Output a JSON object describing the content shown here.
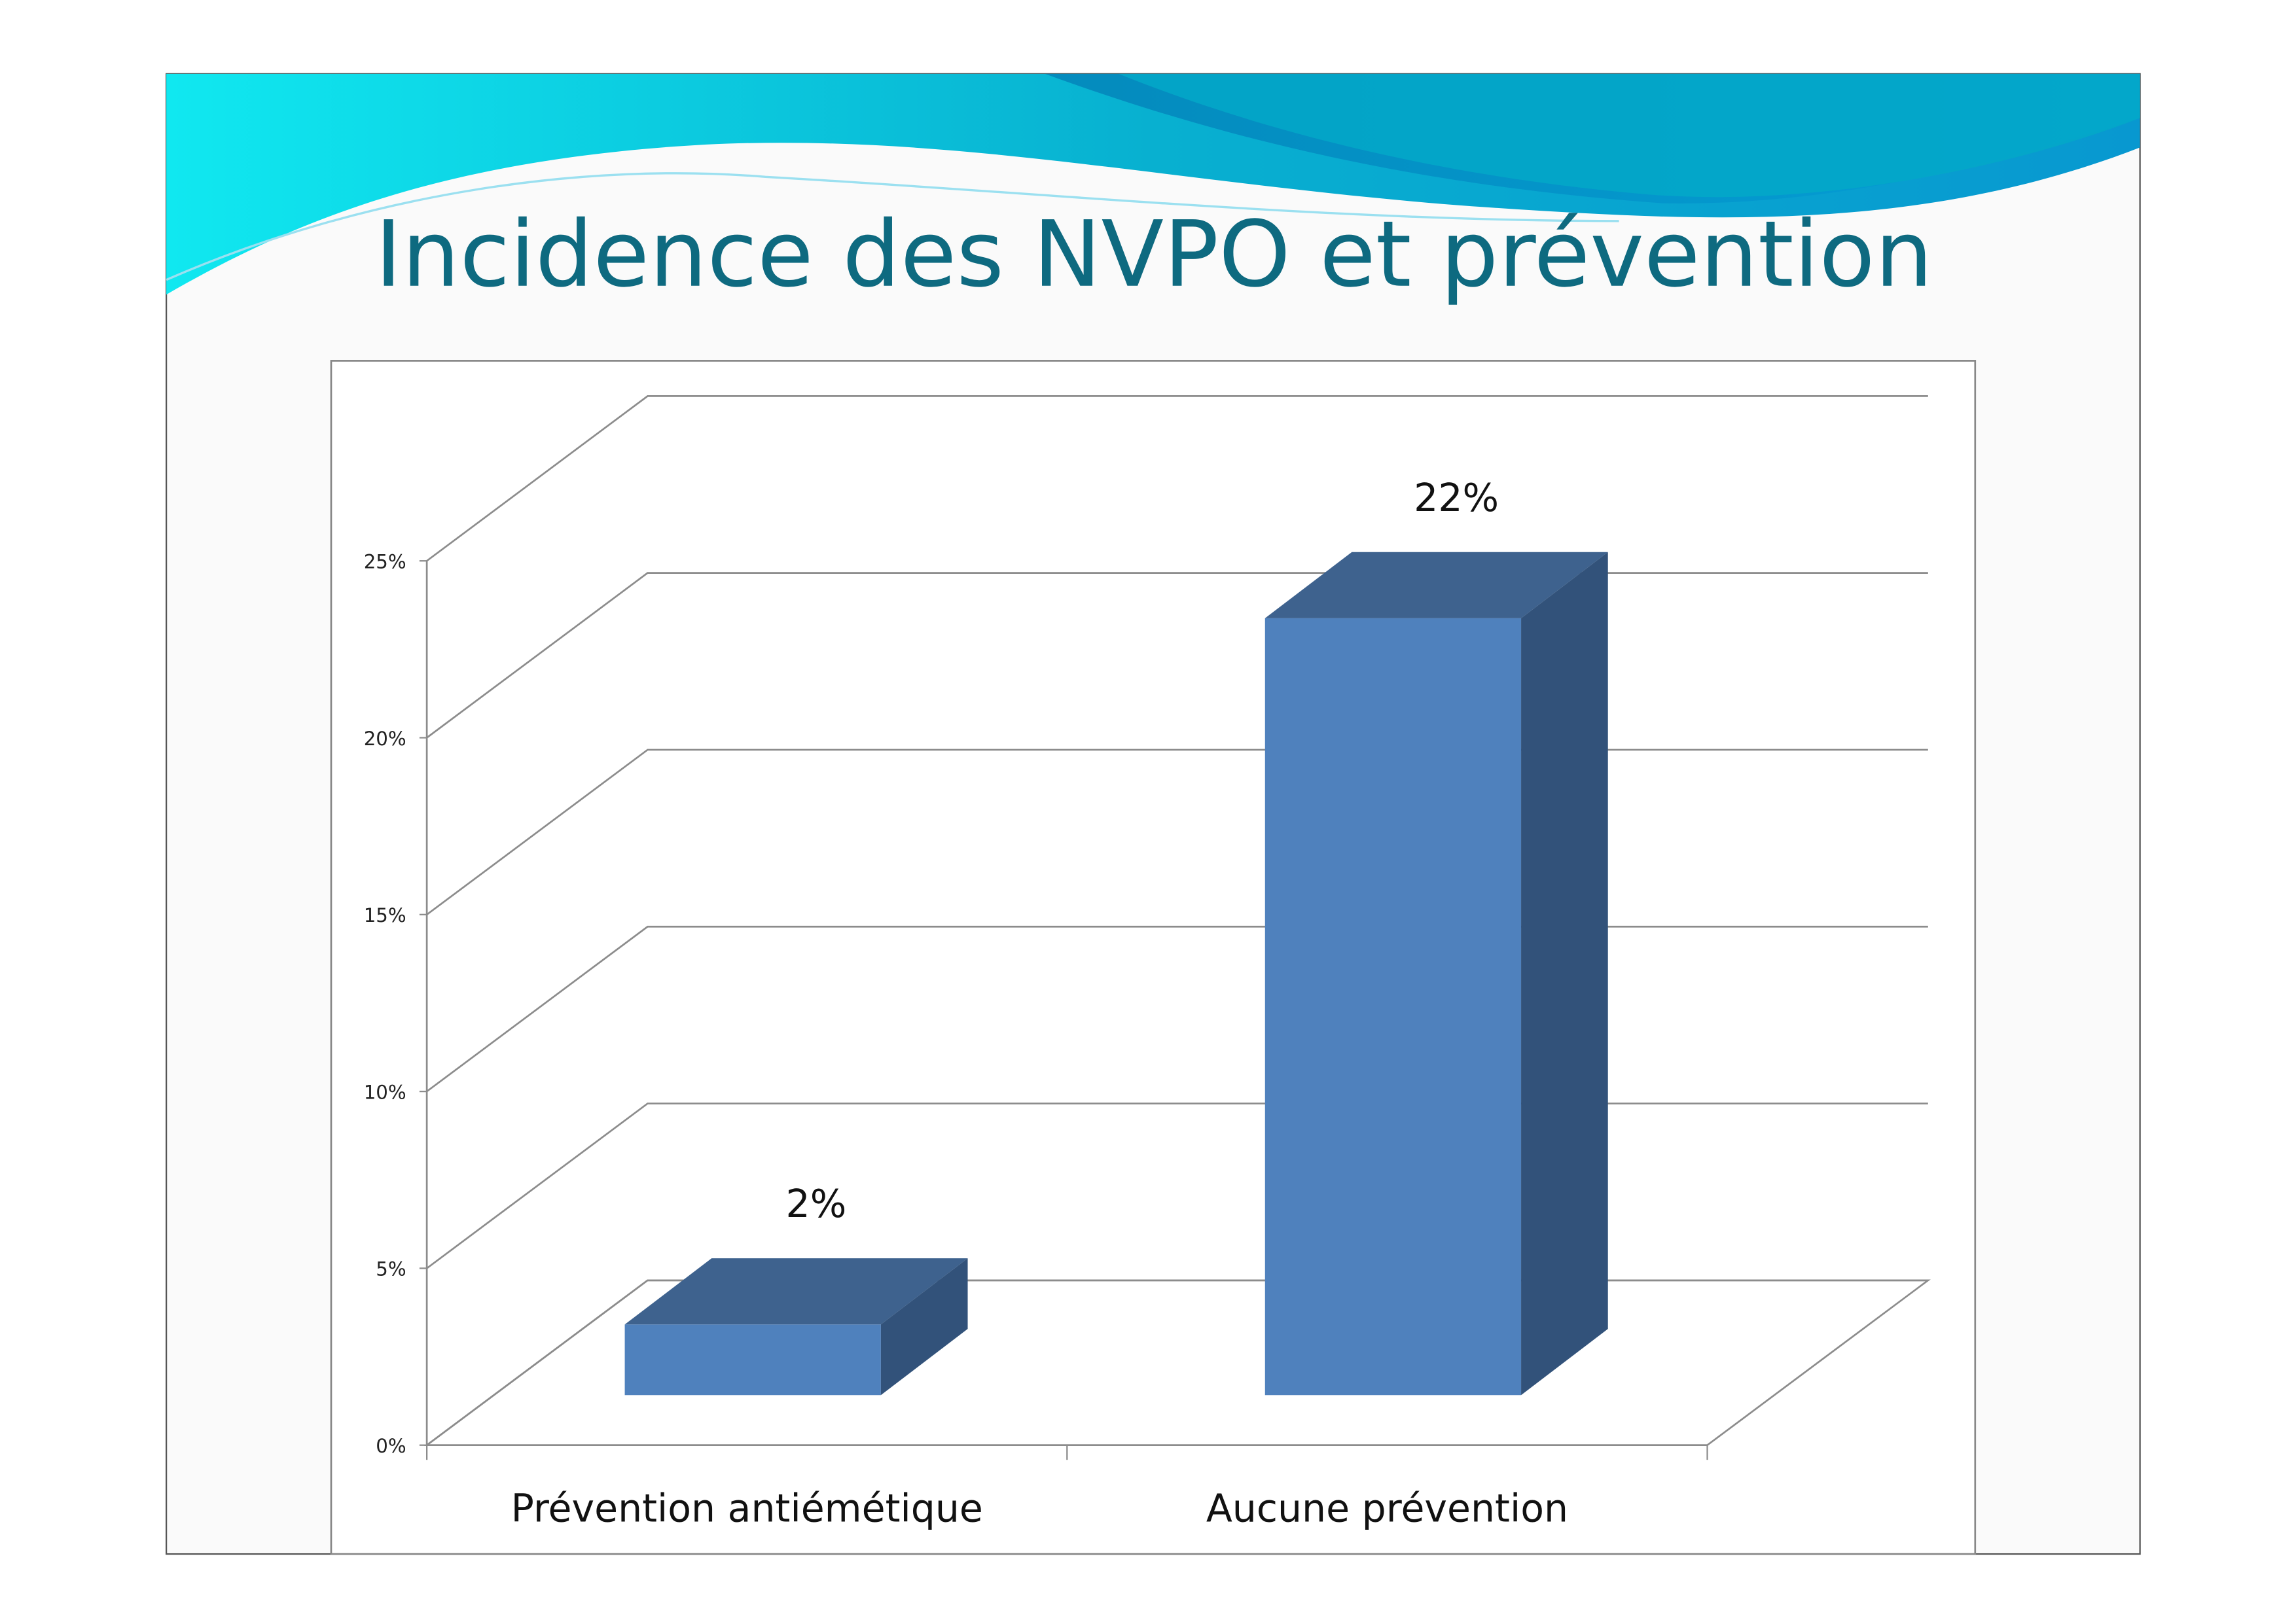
{
  "slide": {
    "title": "Incidence des NVPO et prévention"
  },
  "colors": {
    "title": "#0E6A80",
    "bar_front": "#4F81BD",
    "bar_top": "#3E628E",
    "bar_side": "#32527A",
    "grid": "#8C8C8C"
  },
  "chart_data": {
    "type": "bar",
    "style": "3d-column",
    "categories": [
      "Prévention antiémétique",
      "Aucune prévention"
    ],
    "values": [
      2,
      22
    ],
    "data_labels": [
      "2%",
      "22%"
    ],
    "yticks": [
      "0%",
      "5%",
      "10%",
      "15%",
      "20%",
      "25%"
    ],
    "ylim": [
      0,
      25
    ],
    "grid": true,
    "legend": "none"
  }
}
